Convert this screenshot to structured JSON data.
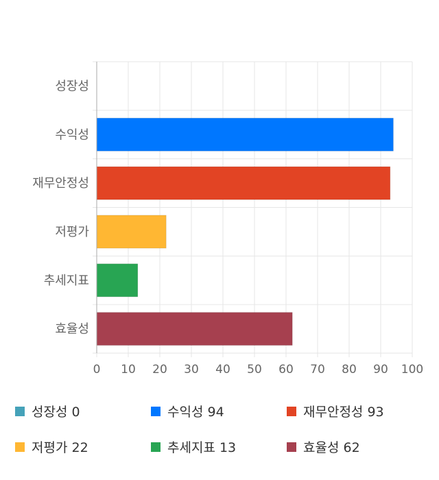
{
  "chart_data": {
    "type": "bar",
    "orientation": "horizontal",
    "categories": [
      "성장성",
      "수익성",
      "재무안정성",
      "저평가",
      "추세지표",
      "효율성"
    ],
    "values": [
      0,
      94,
      93,
      22,
      13,
      62
    ],
    "colors": [
      "#45a2b9",
      "#0077ff",
      "#e24424",
      "#ffb733",
      "#28a553",
      "#a6404f"
    ],
    "xlim": [
      0,
      100
    ],
    "xticks": [
      0,
      10,
      20,
      30,
      40,
      50,
      60,
      70,
      80,
      90,
      100
    ],
    "grid": true,
    "legend_position": "bottom",
    "legend": [
      {
        "label": "성장성 0"
      },
      {
        "label": "수익성 94"
      },
      {
        "label": "재무안정성 93"
      },
      {
        "label": "저평가 22"
      },
      {
        "label": "추세지표 13"
      },
      {
        "label": "효율성 62"
      }
    ]
  }
}
